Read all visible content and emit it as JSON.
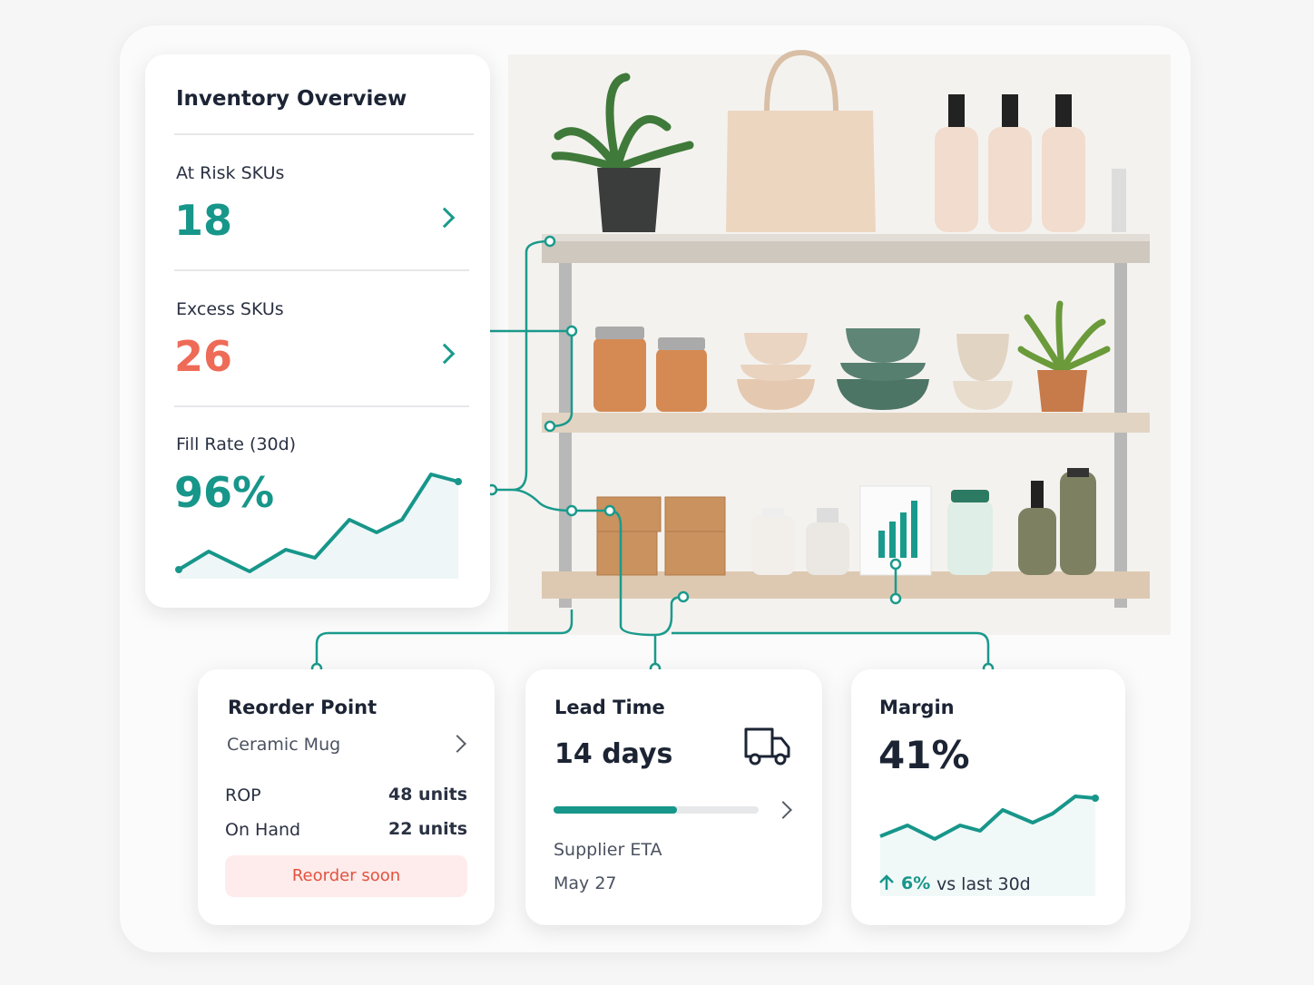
{
  "overview": {
    "title": "Inventory Overview",
    "metrics": [
      {
        "label": "At Risk SKUs",
        "value": "18"
      },
      {
        "label": "Excess SKUs",
        "value": "26"
      },
      {
        "label": "Fill Rate (30d)",
        "value": "96%"
      }
    ]
  },
  "reorder_point": {
    "title": "Reorder Point",
    "item": "Ceramic Mug",
    "rows": [
      [
        "ROP",
        "48 units"
      ],
      [
        "On Hand",
        "22 units"
      ]
    ],
    "status": "Reorder soon"
  },
  "lead_time": {
    "title": "Lead Time",
    "value": "14 days",
    "eta_label": "Supplier ETA",
    "eta": "May 27"
  },
  "margin": {
    "title": "Margin",
    "value": "41%",
    "change": "6%",
    "change_note": "vs last 30d"
  }
}
